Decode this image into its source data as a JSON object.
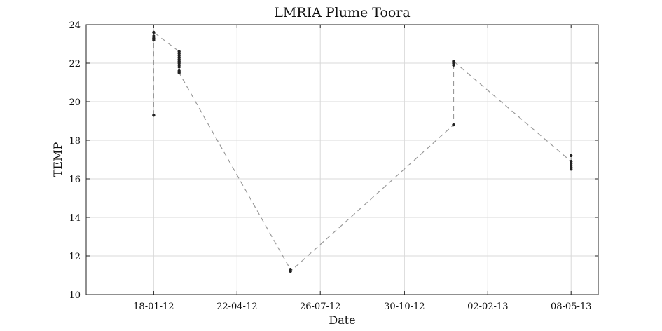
{
  "chart_data": {
    "type": "line",
    "title": "LMRIA Plume Toora",
    "xlabel": "Date",
    "ylabel": "TEMP",
    "x_axis": "date",
    "xlim": [
      "2011-11-02",
      "2013-06-08"
    ],
    "ylim": [
      10,
      24
    ],
    "grid": true,
    "x_ticks": [
      {
        "date": "2012-01-18",
        "label": "18-01-12"
      },
      {
        "date": "2012-04-22",
        "label": "22-04-12"
      },
      {
        "date": "2012-07-26",
        "label": "26-07-12"
      },
      {
        "date": "2012-10-30",
        "label": "30-10-12"
      },
      {
        "date": "2013-02-02",
        "label": "02-02-13"
      },
      {
        "date": "2013-05-08",
        "label": "08-05-13"
      }
    ],
    "y_ticks": [
      10,
      12,
      14,
      16,
      18,
      20,
      22,
      24
    ],
    "series": [
      {
        "marker_color": "#222222",
        "line_color": "#999999",
        "line_style": "dashed",
        "points": [
          {
            "x": "2012-01-18",
            "y": 19.3
          },
          {
            "x": "2012-01-18",
            "y": 23.2
          },
          {
            "x": "2012-01-18",
            "y": 23.3
          },
          {
            "x": "2012-01-18",
            "y": 23.4
          },
          {
            "x": "2012-01-18",
            "y": 23.6
          },
          {
            "x": "2012-02-16",
            "y": 22.6
          },
          {
            "x": "2012-02-16",
            "y": 22.5
          },
          {
            "x": "2012-02-16",
            "y": 22.4
          },
          {
            "x": "2012-02-16",
            "y": 22.3
          },
          {
            "x": "2012-02-16",
            "y": 22.2
          },
          {
            "x": "2012-02-16",
            "y": 22.1
          },
          {
            "x": "2012-02-16",
            "y": 22.0
          },
          {
            "x": "2012-02-16",
            "y": 21.9
          },
          {
            "x": "2012-02-16",
            "y": 21.8
          },
          {
            "x": "2012-02-16",
            "y": 21.6
          },
          {
            "x": "2012-02-16",
            "y": 21.5
          },
          {
            "x": "2012-06-22",
            "y": 11.3
          },
          {
            "x": "2012-06-22",
            "y": 11.2
          },
          {
            "x": "2012-12-25",
            "y": 18.8
          },
          {
            "x": "2012-12-25",
            "y": 21.9
          },
          {
            "x": "2012-12-25",
            "y": 22.0
          },
          {
            "x": "2012-12-25",
            "y": 22.1
          },
          {
            "x": "2013-05-08",
            "y": 16.9
          },
          {
            "x": "2013-05-08",
            "y": 16.8
          },
          {
            "x": "2013-05-08",
            "y": 16.7
          },
          {
            "x": "2013-05-08",
            "y": 16.6
          },
          {
            "x": "2013-05-08",
            "y": 16.5
          },
          {
            "x": "2013-05-08",
            "y": 17.2
          }
        ]
      }
    ]
  }
}
